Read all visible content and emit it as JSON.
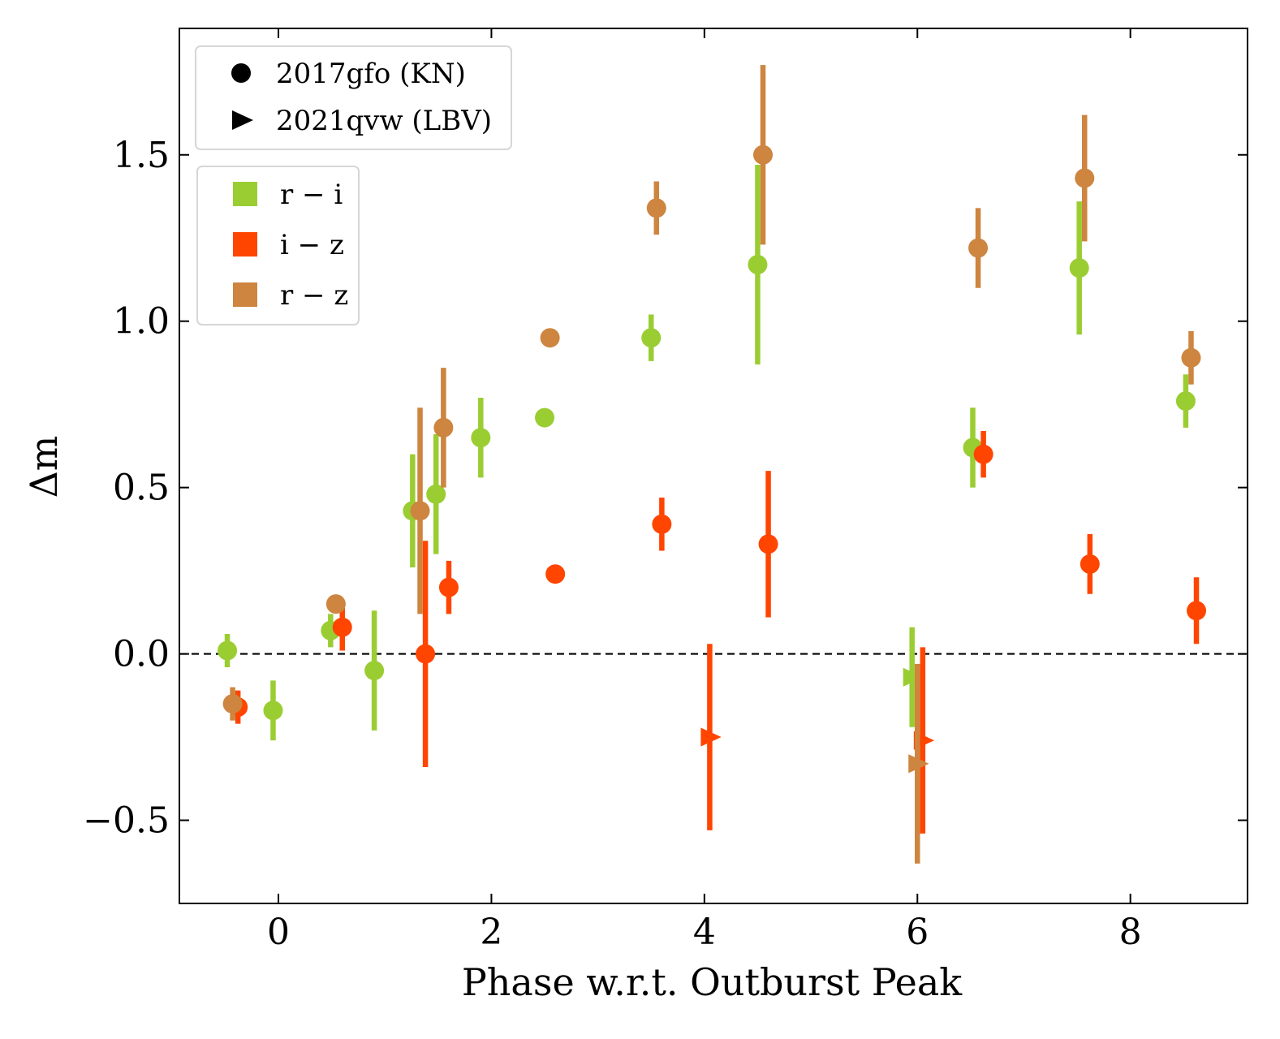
{
  "chart_data": {
    "type": "scatter",
    "title": "",
    "xlabel": "Phase w.r.t. Outburst Peak",
    "ylabel": "Δm",
    "xlim": [
      -0.93,
      9.1
    ],
    "ylim": [
      -0.75,
      1.88
    ],
    "xticks": [
      0,
      2,
      4,
      6,
      8
    ],
    "xtick_labels": [
      "0",
      "2",
      "4",
      "6",
      "8"
    ],
    "yticks": [
      -0.5,
      0.0,
      0.5,
      1.0,
      1.5
    ],
    "ytick_labels": [
      "−0.5",
      "0.0",
      "0.5",
      "1.0",
      "1.5"
    ],
    "reference_line": {
      "y": 0,
      "style": "dashed"
    },
    "legend_objects": {
      "placement": "top-left",
      "entries": [
        {
          "marker": "circle",
          "label": "2017gfo (KN)"
        },
        {
          "marker": "triangle-right",
          "label": "2021qvw (LBV)"
        }
      ]
    },
    "legend_colors": {
      "placement": "upper-left",
      "entries": [
        {
          "label": "r − i",
          "color": "#9acd32"
        },
        {
          "label": "i − z",
          "color": "#ff4500"
        },
        {
          "label": "r − z",
          "color": "#cd853f"
        }
      ]
    },
    "series": [
      {
        "name": "r − i",
        "color": "#9acd32",
        "points": [
          {
            "x": -0.48,
            "y": 0.01,
            "err": 0.05,
            "marker": "circle"
          },
          {
            "x": -0.05,
            "y": -0.17,
            "err": 0.09,
            "marker": "circle"
          },
          {
            "x": 0.49,
            "y": 0.07,
            "err": 0.05,
            "marker": "circle"
          },
          {
            "x": 0.9,
            "y": -0.05,
            "err": 0.18,
            "marker": "circle"
          },
          {
            "x": 1.26,
            "y": 0.43,
            "err": 0.17,
            "marker": "circle"
          },
          {
            "x": 1.48,
            "y": 0.48,
            "err": 0.18,
            "marker": "circle"
          },
          {
            "x": 1.9,
            "y": 0.65,
            "err": 0.12,
            "marker": "circle"
          },
          {
            "x": 2.5,
            "y": 0.71,
            "err": 0.0,
            "marker": "circle"
          },
          {
            "x": 3.5,
            "y": 0.95,
            "err": 0.07,
            "marker": "circle"
          },
          {
            "x": 4.5,
            "y": 1.17,
            "err": 0.3,
            "marker": "circle"
          },
          {
            "x": 5.95,
            "y": -0.07,
            "err": 0.15,
            "marker": "triangle-right"
          },
          {
            "x": 6.52,
            "y": 0.62,
            "err": 0.12,
            "marker": "circle"
          },
          {
            "x": 7.52,
            "y": 1.16,
            "err": 0.2,
            "marker": "circle"
          },
          {
            "x": 8.52,
            "y": 0.76,
            "err": 0.08,
            "marker": "circle"
          }
        ]
      },
      {
        "name": "i − z",
        "color": "#ff4500",
        "points": [
          {
            "x": -0.38,
            "y": -0.16,
            "err": 0.05,
            "marker": "circle"
          },
          {
            "x": 0.6,
            "y": 0.08,
            "err": 0.07,
            "marker": "circle"
          },
          {
            "x": 1.38,
            "y": 0.0,
            "err": 0.34,
            "marker": "circle"
          },
          {
            "x": 1.6,
            "y": 0.2,
            "err": 0.08,
            "marker": "circle"
          },
          {
            "x": 2.6,
            "y": 0.24,
            "err": 0.0,
            "marker": "circle"
          },
          {
            "x": 3.6,
            "y": 0.39,
            "err": 0.08,
            "marker": "circle"
          },
          {
            "x": 4.05,
            "y": -0.25,
            "err": 0.28,
            "marker": "triangle-right"
          },
          {
            "x": 4.6,
            "y": 0.33,
            "err": 0.22,
            "marker": "circle"
          },
          {
            "x": 6.05,
            "y": -0.26,
            "err": 0.28,
            "marker": "triangle-right"
          },
          {
            "x": 6.62,
            "y": 0.6,
            "err": 0.07,
            "marker": "circle"
          },
          {
            "x": 7.62,
            "y": 0.27,
            "err": 0.09,
            "marker": "circle"
          },
          {
            "x": 8.62,
            "y": 0.13,
            "err": 0.1,
            "marker": "circle"
          }
        ]
      },
      {
        "name": "r − z",
        "color": "#cd853f",
        "points": [
          {
            "x": -0.43,
            "y": -0.15,
            "err": 0.05,
            "marker": "circle"
          },
          {
            "x": 0.54,
            "y": 0.15,
            "err": 0.02,
            "marker": "circle"
          },
          {
            "x": 1.33,
            "y": 0.43,
            "err": 0.31,
            "marker": "circle"
          },
          {
            "x": 1.55,
            "y": 0.68,
            "err": 0.18,
            "marker": "circle"
          },
          {
            "x": 2.55,
            "y": 0.95,
            "err": 0.02,
            "marker": "circle"
          },
          {
            "x": 3.55,
            "y": 1.34,
            "err": 0.08,
            "marker": "circle"
          },
          {
            "x": 4.55,
            "y": 1.5,
            "err": 0.27,
            "marker": "circle"
          },
          {
            "x": 6.0,
            "y": -0.33,
            "err": 0.3,
            "marker": "triangle-right"
          },
          {
            "x": 6.57,
            "y": 1.22,
            "err": 0.12,
            "marker": "circle"
          },
          {
            "x": 7.57,
            "y": 1.43,
            "err": 0.19,
            "marker": "circle"
          },
          {
            "x": 8.57,
            "y": 0.89,
            "err": 0.08,
            "marker": "circle"
          }
        ]
      }
    ]
  }
}
